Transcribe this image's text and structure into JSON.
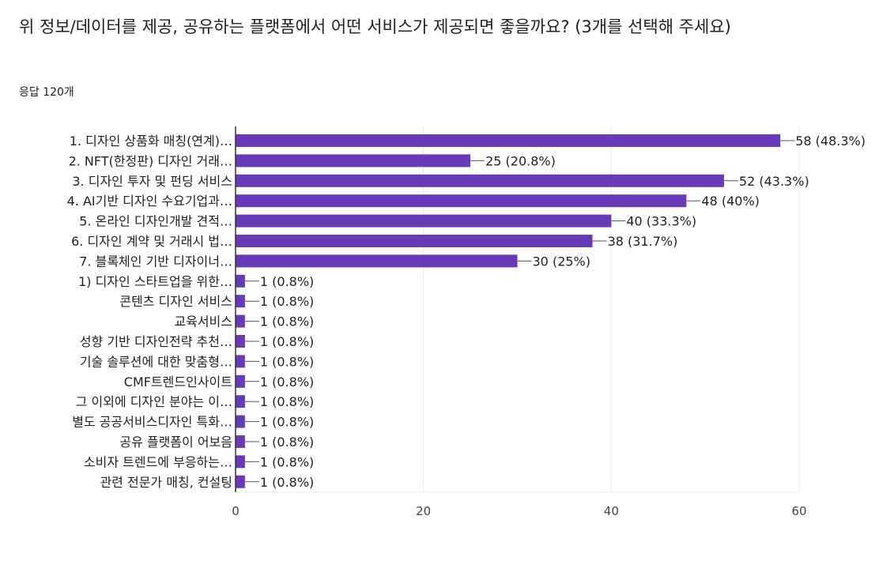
{
  "question": {
    "title": "위 정보/데이터를 제공, 공유하는 플랫폼에서 어떤 서비스가 제공되면 좋을까요? (3개를 선택해 주세요)",
    "response_count": "응답 120개"
  },
  "colors": {
    "bar": "#673ab7",
    "grid": "#ebebeb",
    "axis": "#333333"
  },
  "chart_data": {
    "type": "bar",
    "orientation": "horizontal",
    "title": "위 정보/데이터를 제공, 공유하는 플랫폼에서 어떤 서비스가 제공되면 좋을까요? (3개를 선택해 주세요)",
    "xlabel": "",
    "ylabel": "",
    "xlim": [
      0,
      60
    ],
    "xticks": [
      0,
      20,
      40,
      60
    ],
    "grid": true,
    "categories": [
      "1. 디자인 상품화 매칭(연계)…",
      "2. NFT(한정판) 디자인 거래…",
      "3. 디자인 투자 및 펀딩 서비스",
      "4. AI기반 디자인 수요기업과…",
      "5. 온라인 디자인개발 견적…",
      "6. 디자인 계약 및 거래시 법…",
      "7. 블록체인 기반 디자이너…",
      "1) 디자인 스타트업을 위한…",
      "콘텐츠 디자인 서비스",
      "교육서비스",
      "성향 기반 디자인전략 추천…",
      "기술 솔루션에 대한 맞춤형…",
      "CMF트렌드인사이트",
      "그 이외에 디자인 분야는 이…",
      "별도 공공서비스디자인 특화…",
      "공유 플랫폼이 어보음",
      "소비자 트렌드에 부응하는…",
      "관련 전문가 매칭, 컨설팅"
    ],
    "values": [
      58,
      25,
      52,
      48,
      40,
      38,
      30,
      1,
      1,
      1,
      1,
      1,
      1,
      1,
      1,
      1,
      1,
      1
    ],
    "data_labels": [
      "58 (48.3%)",
      "25 (20.8%)",
      "52 (43.3%)",
      "48 (40%)",
      "40 (33.3%)",
      "38 (31.7%)",
      "30 (25%)",
      "1 (0.8%)",
      "1 (0.8%)",
      "1 (0.8%)",
      "1 (0.8%)",
      "1 (0.8%)",
      "1 (0.8%)",
      "1 (0.8%)",
      "1 (0.8%)",
      "1 (0.8%)",
      "1 (0.8%)",
      "1 (0.8%)"
    ]
  }
}
